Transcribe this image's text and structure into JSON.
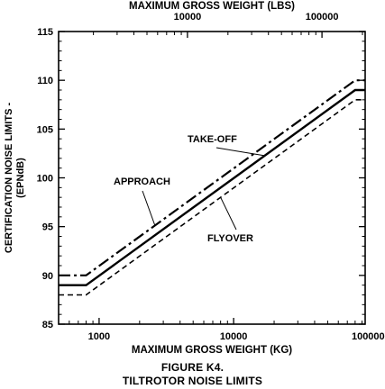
{
  "chart_data": {
    "type": "line",
    "top_axis": {
      "label": "MAXIMUM GROSS WEIGHT (LBS)",
      "scale": "log",
      "range": [
        1102,
        209439
      ],
      "ticks": [
        {
          "value": 10000,
          "label": "10000"
        },
        {
          "value": 100000,
          "label": "100000"
        }
      ]
    },
    "x_axis": {
      "label": "MAXIMUM GROSS WEIGHT (KG)",
      "scale": "log",
      "range": [
        500,
        95000
      ],
      "ticks": [
        {
          "value": 1000,
          "label": "1000"
        },
        {
          "value": 10000,
          "label": "10000"
        },
        {
          "value": 100000,
          "label": "100000"
        }
      ]
    },
    "y_axis": {
      "label_line1": "CERTIFICATION NOISE LIMITS -",
      "label_line2": "(EPNdB)",
      "range": [
        85,
        115
      ],
      "ticks": [
        85,
        90,
        95,
        100,
        105,
        110,
        115
      ]
    },
    "series": [
      {
        "name": "APPROACH",
        "style": "dash-dot",
        "points": [
          [
            500,
            90
          ],
          [
            800,
            90
          ],
          [
            80000,
            110
          ],
          [
            95000,
            110
          ]
        ]
      },
      {
        "name": "TAKE-OFF",
        "style": "solid",
        "points": [
          [
            500,
            89
          ],
          [
            800,
            89
          ],
          [
            80000,
            109
          ],
          [
            95000,
            109
          ]
        ]
      },
      {
        "name": "FLYOVER",
        "style": "dashed",
        "points": [
          [
            500,
            88
          ],
          [
            800,
            88
          ],
          [
            80000,
            108
          ],
          [
            95000,
            108
          ]
        ]
      }
    ],
    "annotations": [
      {
        "text": "TAKE-OFF",
        "target_series": "TAKE-OFF"
      },
      {
        "text": "APPROACH",
        "target_series": "APPROACH"
      },
      {
        "text": "FLYOVER",
        "target_series": "FLYOVER"
      }
    ],
    "grid": false
  },
  "caption": {
    "figure": "FIGURE K4.",
    "title": "TILTROTOR NOISE LIMITS"
  }
}
